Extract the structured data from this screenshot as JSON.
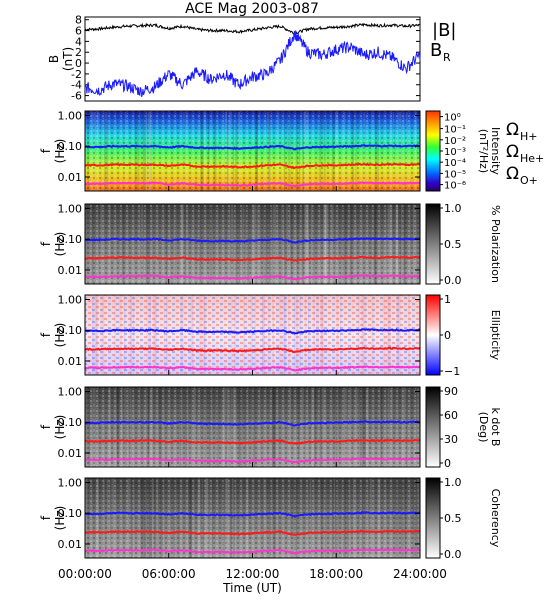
{
  "chart_data": [
    {
      "type": "line",
      "title": "ACE Mag 2003-087",
      "ylabel": "B\n(nT)",
      "yticks": [
        "8",
        "6",
        "4",
        "2",
        "0",
        "-2",
        "-4",
        "-6"
      ],
      "ylim": [
        -7,
        8.5
      ],
      "xlim_hours": [
        0,
        24
      ],
      "series": [
        {
          "name": "|B|",
          "color": "#000000",
          "x": [
            0,
            1,
            2,
            3,
            4,
            5,
            6,
            7,
            8,
            9,
            10,
            11,
            12,
            13,
            14,
            15,
            16,
            17,
            18,
            19,
            20,
            21,
            22,
            23,
            24
          ],
          "y": [
            6.2,
            6.3,
            6.6,
            6.8,
            6.9,
            7.0,
            6.4,
            6.8,
            6.2,
            6.0,
            6.0,
            5.8,
            6.1,
            6.5,
            6.8,
            5.5,
            6.3,
            6.5,
            6.6,
            6.8,
            7.1,
            6.9,
            7.0,
            6.8,
            7.0
          ]
        },
        {
          "name": "B_R",
          "color": "#1a1aff",
          "x": [
            0,
            1,
            2,
            3,
            4,
            5,
            6,
            7,
            8,
            9,
            10,
            11,
            12,
            13,
            14,
            15,
            16,
            17,
            18,
            19,
            20,
            21,
            22,
            23,
            24
          ],
          "y": [
            -4.5,
            -5.0,
            -3.8,
            -4.2,
            -5.2,
            -4.4,
            -2.0,
            -4.0,
            -1.5,
            -3.0,
            -2.0,
            -4.0,
            -2.5,
            -2.0,
            0.5,
            5.5,
            2.0,
            1.5,
            2.5,
            3.0,
            1.5,
            2.0,
            1.0,
            -1.0,
            1.5
          ]
        }
      ],
      "legend": [
        "|B|",
        "B",
        "R"
      ]
    },
    {
      "type": "heatmap",
      "ylabel": "f\n(Hz)",
      "yticks": [
        "1.00",
        "0.10",
        "0.01"
      ],
      "colorbar_title": "Intensity",
      "colorbar_unit": "(nT²/Hz)",
      "colorbar_ticks": [
        "10⁰",
        "10⁻¹",
        "10⁻²",
        "10⁻³",
        "10⁻⁴",
        "10⁻⁵",
        "10⁻⁶"
      ],
      "lines": [
        {
          "name": "ΩH+",
          "color": "#1a1aff",
          "values_hz": [
            0.095,
            0.095,
            0.1,
            0.1,
            0.1,
            0.1,
            0.092,
            0.1,
            0.09,
            0.088,
            0.088,
            0.085,
            0.09,
            0.095,
            0.1,
            0.08,
            0.092,
            0.095,
            0.097,
            0.1,
            0.105,
            0.102,
            0.103,
            0.1,
            0.103
          ]
        },
        {
          "name": "ΩHe+",
          "color": "#ff1a1a",
          "values_hz": [
            0.024,
            0.024,
            0.025,
            0.025,
            0.025,
            0.025,
            0.023,
            0.025,
            0.022,
            0.022,
            0.022,
            0.021,
            0.022,
            0.024,
            0.025,
            0.02,
            0.023,
            0.024,
            0.024,
            0.025,
            0.026,
            0.025,
            0.026,
            0.025,
            0.026
          ]
        },
        {
          "name": "ΩO+",
          "color": "#ff33cc",
          "values_hz": [
            0.006,
            0.006,
            0.0062,
            0.0063,
            0.0063,
            0.0064,
            0.0058,
            0.0062,
            0.0056,
            0.0055,
            0.0055,
            0.0053,
            0.0056,
            0.006,
            0.0062,
            0.005,
            0.0058,
            0.006,
            0.006,
            0.0062,
            0.0065,
            0.0063,
            0.0064,
            0.0062,
            0.0064
          ]
        }
      ],
      "legend": [
        "Ω",
        "H+",
        "Ω",
        "He+",
        "Ω",
        "O+"
      ]
    },
    {
      "type": "heatmap",
      "ylabel": "f\n(Hz)",
      "yticks": [
        "1.00",
        "0.10",
        "0.01"
      ],
      "colorbar_title": "% Polarization",
      "colorbar_ticks": [
        "1.0",
        "0.5",
        "0.0"
      ]
    },
    {
      "type": "heatmap",
      "ylabel": "f\n(Hz)",
      "yticks": [
        "1.00",
        "0.10",
        "0.01"
      ],
      "colorbar_title": "Ellipticity",
      "colorbar_ticks": [
        "1",
        "0",
        "−1"
      ]
    },
    {
      "type": "heatmap",
      "ylabel": "f\n(Hz)",
      "yticks": [
        "1.00",
        "0.10",
        "0.01"
      ],
      "colorbar_title": "k dot B",
      "colorbar_unit": "(Deg)",
      "colorbar_ticks": [
        "90",
        "60",
        "30",
        "0"
      ]
    },
    {
      "type": "heatmap",
      "ylabel": "f\n(Hz)",
      "yticks": [
        "1.00",
        "0.10",
        "0.01"
      ],
      "colorbar_title": "Coherency",
      "colorbar_ticks": [
        "1.0",
        "0.5",
        "0.0"
      ],
      "xticks": [
        "00:00:00",
        "06:00:00",
        "12:00:00",
        "18:00:00",
        "24:00:00"
      ],
      "xlabel": "Time (UT)"
    }
  ]
}
